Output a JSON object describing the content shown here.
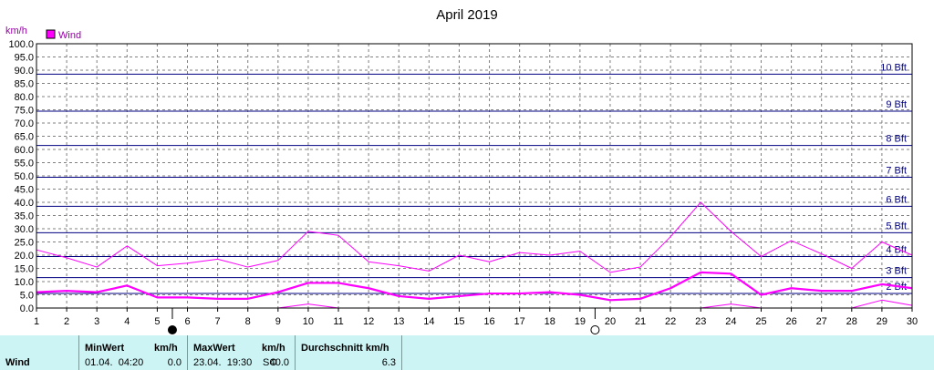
{
  "title": "April 2019",
  "unit_label": "km/h",
  "legend": {
    "label": "Wind",
    "color": "#ff00ff"
  },
  "colors": {
    "series": "#ff00ff",
    "bft": "#000080",
    "grid": "#808080",
    "panel": "#ccf4f4"
  },
  "beaufort": [
    {
      "label": "2 Bft",
      "value": 5.5
    },
    {
      "label": "3 Bft",
      "value": 11.5
    },
    {
      "label": "4 Bft",
      "value": 19.5
    },
    {
      "label": "5 Bft",
      "value": 28.5
    },
    {
      "label": "6 Bft",
      "value": 38.5
    },
    {
      "label": "7 Bft",
      "value": 49.5
    },
    {
      "label": "8 Bft",
      "value": 61.5
    },
    {
      "label": "9 Bft",
      "value": 74.5
    },
    {
      "label": "10 Bft",
      "value": 88.5
    }
  ],
  "moon_phases": [
    {
      "day": 5.5,
      "phase": "new-moon"
    },
    {
      "day": 19.5,
      "phase": "full-moon"
    }
  ],
  "chart_data": {
    "type": "line",
    "x": [
      1,
      2,
      3,
      4,
      5,
      6,
      7,
      8,
      9,
      10,
      11,
      12,
      13,
      14,
      15,
      16,
      17,
      18,
      19,
      20,
      21,
      22,
      23,
      24,
      25,
      26,
      27,
      28,
      29,
      30
    ],
    "xlim": [
      1,
      30
    ],
    "ylim": [
      0,
      100
    ],
    "ystep": 5,
    "grid": true,
    "legend_position": "top-left",
    "series": [
      {
        "name": "Wind",
        "role": "average",
        "values": [
          6.0,
          6.5,
          6.0,
          8.5,
          4.0,
          4.0,
          3.5,
          3.5,
          6.0,
          9.5,
          9.5,
          7.5,
          4.5,
          3.5,
          4.5,
          5.5,
          5.5,
          6.0,
          5.0,
          3.0,
          3.5,
          7.5,
          13.5,
          13.0,
          5.0,
          7.5,
          6.5,
          6.5,
          9.0,
          7.5
        ]
      },
      {
        "role": "max",
        "values": [
          22.0,
          19.0,
          15.5,
          23.5,
          16.0,
          17.0,
          18.5,
          15.5,
          18.0,
          29.0,
          27.5,
          17.5,
          16.0,
          14.0,
          20.0,
          17.5,
          21.0,
          20.0,
          21.5,
          13.5,
          15.5,
          27.0,
          40.0,
          29.0,
          19.5,
          25.5,
          20.5,
          15.0,
          25.0,
          20.0
        ]
      },
      {
        "role": "min",
        "values": [
          0,
          0,
          0,
          0,
          0,
          0,
          0,
          0,
          0,
          1.5,
          0,
          0,
          0,
          0,
          0,
          0,
          0,
          0,
          0,
          0,
          0,
          0,
          0,
          1.5,
          0,
          0,
          0,
          0,
          3.0,
          1.0
        ]
      }
    ]
  },
  "stats": {
    "row_label": "Wind",
    "min": {
      "header": "MinWert",
      "unit": "km/h",
      "time": "01.04.  04:20",
      "value": "0.0"
    },
    "max": {
      "header": "MaxWert",
      "unit": "km/h",
      "time": "23.04.  19:30",
      "dir": "SO",
      "value": "40.0"
    },
    "avg": {
      "header": "Durchschnitt km/h",
      "value": "6.3"
    }
  }
}
